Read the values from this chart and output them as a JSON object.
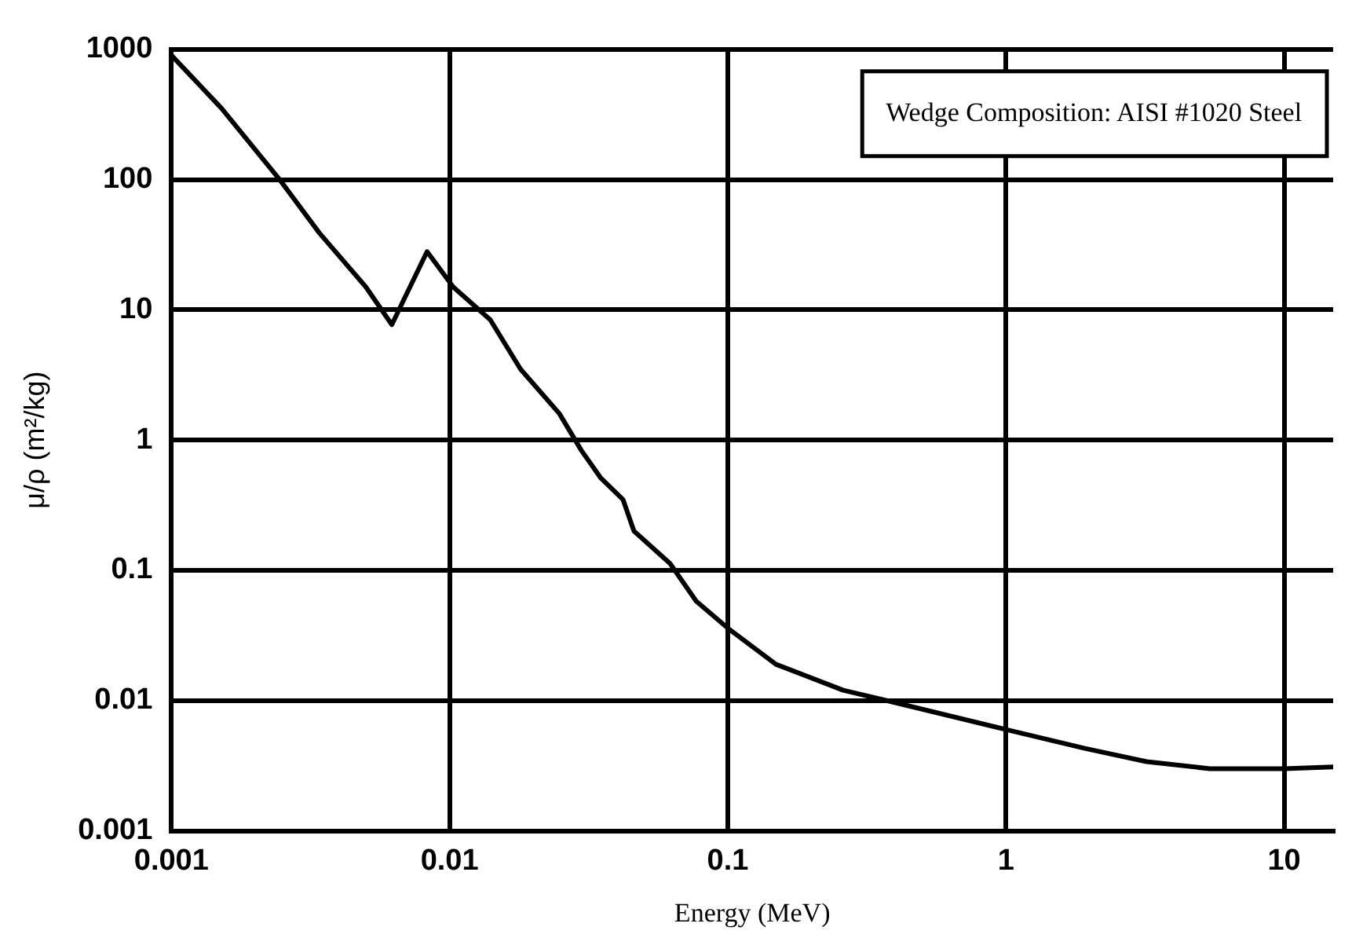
{
  "chart_data": {
    "type": "line",
    "xlabel": "Energy (MeV)",
    "ylabel": "μ/ρ (m²/kg)",
    "log": "xy",
    "grid": true,
    "legend": false,
    "marker": "none",
    "line_style": "solid",
    "annotations": [
      "Wedge Composition: AISI #1020 Steel"
    ],
    "xlim": [
      0.001,
      15
    ],
    "xticks": [
      0.001,
      0.01,
      0.1,
      1,
      10
    ],
    "ylim": [
      0.001,
      1000
    ],
    "yticks": [
      0.001,
      0.01,
      0.1,
      1,
      10,
      100,
      1000
    ],
    "series": [
      {
        "color": "#000000",
        "x": [
          0.001,
          0.00151,
          0.00245,
          0.0034,
          0.005,
          0.0062,
          0.0083,
          0.0103,
          0.014,
          0.018,
          0.0248,
          0.0298,
          0.035,
          0.042,
          0.046,
          0.062,
          0.077,
          0.1,
          0.149,
          0.26,
          0.38,
          1,
          1.92,
          3.2,
          5.4,
          10,
          15
        ],
        "values": [
          900,
          355,
          100,
          39,
          15,
          7.7,
          28,
          15,
          8.4,
          3.5,
          1.6,
          0.83,
          0.51,
          0.35,
          0.2,
          0.113,
          0.058,
          0.036,
          0.019,
          0.012,
          0.0099,
          0.006,
          0.0043,
          0.0034,
          0.003,
          0.003,
          0.0031
        ]
      }
    ]
  }
}
